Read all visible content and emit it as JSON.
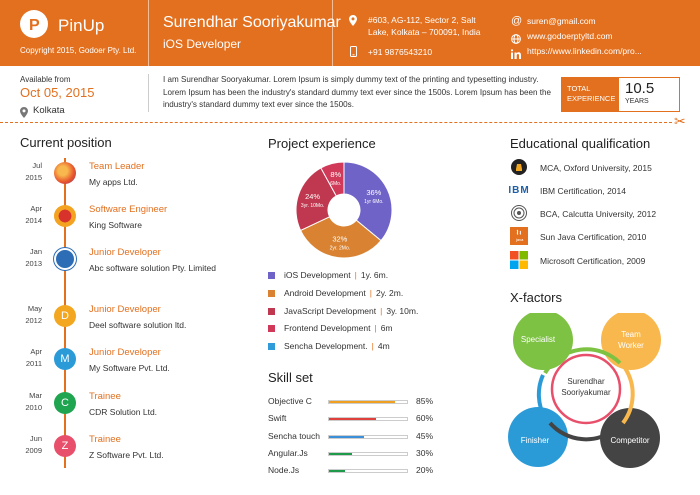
{
  "header": {
    "logo_letter": "P",
    "logo_text": "PinUp",
    "copyright": "Copyright 2015, Godoer Pty. Ltd.",
    "name": "Surendhar Sooriyakumar",
    "role": "iOS Developer",
    "address_line1": "#603, AG-112, Sector 2, Salt",
    "address_line2": "Lake, Kolkata – 700091, India",
    "phone": "+91 9876543210",
    "email": "suren@gmail.com",
    "website": "www.godoerptyltd.com",
    "linkedin": "https://www.linkedin.com/pro...",
    "icons": {
      "address": "location-pin-icon",
      "phone": "phone-icon",
      "email": "at-icon",
      "website": "globe-icon",
      "linkedin": "linkedin-icon"
    }
  },
  "summary": {
    "available_label": "Available from",
    "available_date": "Oct 05, 2015",
    "location": "Kolkata",
    "about": "I am Surendhar Sooryakumar. Lorem Ipsum is simply dummy text of the printing and typesetting industry. Lorem Ipsum has been the industry's standard dummy text ever since the 1500s. Lorem Ipsum has been the industry's standard dummy text ever since the 1500s.",
    "experience_label_1": "TOTAL",
    "experience_label_2": "EXPERIENCE",
    "experience_value": "10.5",
    "experience_unit": "YEARS"
  },
  "current_position": {
    "title": "Current position",
    "items": [
      {
        "month": "Jul",
        "year": "2015",
        "role": "Team Leader",
        "company": "My apps Ltd.",
        "logo": "firefox-logo",
        "letter": "",
        "color": "#e8552b"
      },
      {
        "month": "Apr",
        "year": "2014",
        "role": "Software Engineer",
        "company": "King Software",
        "logo": "burger-king-logo",
        "letter": "",
        "color": "#f4a321"
      },
      {
        "month": "Jan",
        "year": "2013",
        "role": "Junior Developer",
        "company": "Abc software solution Pty. Limited",
        "logo": "ge-logo",
        "letter": "",
        "color": "#2d6db5"
      },
      {
        "month": "May",
        "year": "2012",
        "role": "Junior Developer",
        "company": "Deel software solution ltd.",
        "logo": "letter-avatar",
        "letter": "D",
        "color": "#f3a720"
      },
      {
        "month": "Apr",
        "year": "2011",
        "role": "Junior Developer",
        "company": "My Software Pvt. Ltd.",
        "logo": "letter-avatar",
        "letter": "M",
        "color": "#2b9bd8"
      },
      {
        "month": "Mar",
        "year": "2010",
        "role": "Trainee",
        "company": "CDR Solution Ltd.",
        "logo": "letter-avatar",
        "letter": "C",
        "color": "#1fa450"
      },
      {
        "month": "Jun",
        "year": "2009",
        "role": "Trainee",
        "company": "Z Software Pvt. Ltd.",
        "logo": "letter-avatar",
        "letter": "Z",
        "color": "#e84f6b"
      }
    ]
  },
  "project_experience": {
    "title": "Project experience",
    "legend": [
      {
        "name": "iOS Development",
        "duration": "1y. 6m.",
        "color": "#6f63c8"
      },
      {
        "name": "Android Development",
        "duration": "2y. 2m.",
        "color": "#d98332"
      },
      {
        "name": "JavaScript Development",
        "duration": "3y. 10m.",
        "color": "#c0384f"
      },
      {
        "name": "Frontend Development",
        "duration": "6m",
        "color": "#d03a58"
      },
      {
        "name": "Sencha Development.",
        "duration": "4m",
        "color": "#2f9bd9"
      }
    ]
  },
  "chart_data": {
    "type": "pie",
    "title": "Project experience",
    "categories": [
      "iOS Development",
      "Android Development",
      "JavaScript Development",
      "Frontend Development",
      "Sencha Development"
    ],
    "values": [
      36,
      32,
      24,
      8,
      0
    ],
    "slice_labels": [
      {
        "pct": "36%",
        "sub": "1yr 6Mo."
      },
      {
        "pct": "32%",
        "sub": "2yr. 2Mo."
      },
      {
        "pct": "24%",
        "sub": "3yr. 10Mo."
      },
      {
        "pct": "8%",
        "sub": "6Mo."
      },
      {
        "pct": "",
        "sub": ""
      }
    ],
    "colors": [
      "#6f63c8",
      "#d98332",
      "#c0384f",
      "#d03a58",
      "#2f9bd9"
    ],
    "donut": true
  },
  "skills": {
    "title": "Skill set",
    "items": [
      {
        "name": "Objective C",
        "percent": "85%",
        "level": 0.85,
        "color": "#f0a020"
      },
      {
        "name": "Swift",
        "percent": "60%",
        "level": 0.6,
        "color": "#e0403c"
      },
      {
        "name": "Sencha touch",
        "percent": "45%",
        "level": 0.45,
        "color": "#3b8fd8"
      },
      {
        "name": "Angular.Js",
        "percent": "30%",
        "level": 0.3,
        "color": "#1f9a4a"
      },
      {
        "name": "Node.Js",
        "percent": "20%",
        "level": 0.2,
        "color": "#1f9a4a"
      }
    ]
  },
  "education": {
    "title": "Educational qualification",
    "items": [
      {
        "text": "MCA, Oxford University, 2015",
        "icon": "oxford-icon"
      },
      {
        "text": "IBM Certification, 2014",
        "icon": "ibm-logo",
        "logo_text": "IBM"
      },
      {
        "text": "BCA, Calcutta University, 2012",
        "icon": "university-seal-icon"
      },
      {
        "text": "Sun Java Certification, 2010",
        "icon": "java-logo",
        "logo_text": "java"
      },
      {
        "text": "Microsoft Certification, 2009",
        "icon": "microsoft-logo"
      }
    ]
  },
  "x_factors": {
    "title": "X-factors",
    "center": "Surendhar Sooriyakumar",
    "items": [
      {
        "label": "Specialist",
        "color": "#7dc242"
      },
      {
        "label": "Team Worker",
        "color": "#f8b84e"
      },
      {
        "label": "Finisher",
        "color": "#2b9bd8"
      },
      {
        "label": "Competitor",
        "color": "#444444"
      }
    ]
  }
}
